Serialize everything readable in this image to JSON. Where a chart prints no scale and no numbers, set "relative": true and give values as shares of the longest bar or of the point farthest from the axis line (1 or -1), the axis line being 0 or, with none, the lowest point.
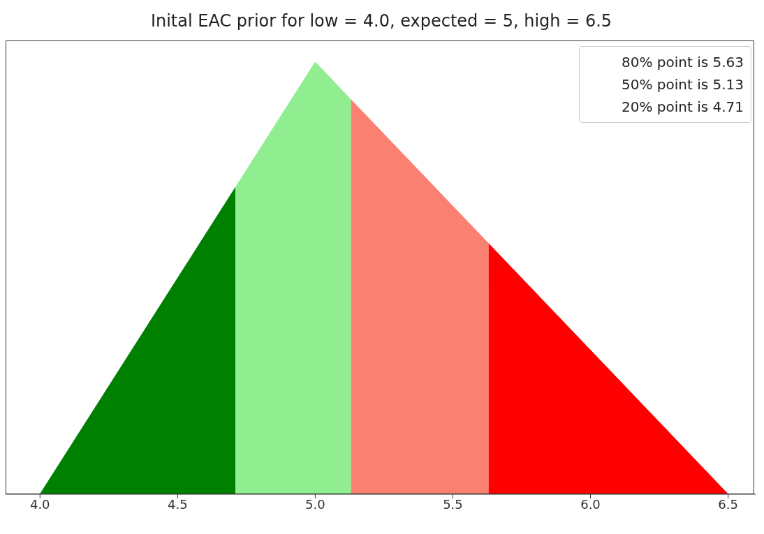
{
  "chart_data": {
    "type": "area",
    "title": "Inital EAC prior for low = 4.0, expected = 5, high = 6.5",
    "relative": true,
    "xlim": [
      3.875,
      6.6
    ],
    "xticks": [
      {
        "value": 4,
        "label": "4.0"
      },
      4.5,
      {
        "value": 5,
        "label": "5.0"
      },
      5.5,
      {
        "value": 6,
        "label": "6.0"
      },
      6.5
    ],
    "grid": false,
    "annotations": [
      "80% point is 5.63",
      "50% point is 5.13",
      "20% point is 4.71"
    ],
    "series": [
      {
        "color": "#008000",
        "x": [
          4,
          4.71
        ],
        "values": [
          0,
          0.71
        ]
      },
      {
        "color": "#90ee90",
        "x": [
          4.71,
          5,
          5.13
        ],
        "values": [
          0.71,
          1,
          0.913
        ]
      },
      {
        "color": "#fa8072",
        "x": [
          5.13,
          5.63
        ],
        "values": [
          0.913,
          0.58
        ]
      },
      {
        "color": "#ff0000",
        "x": [
          5.63,
          6.5
        ],
        "values": [
          0.58,
          0
        ]
      }
    ]
  }
}
